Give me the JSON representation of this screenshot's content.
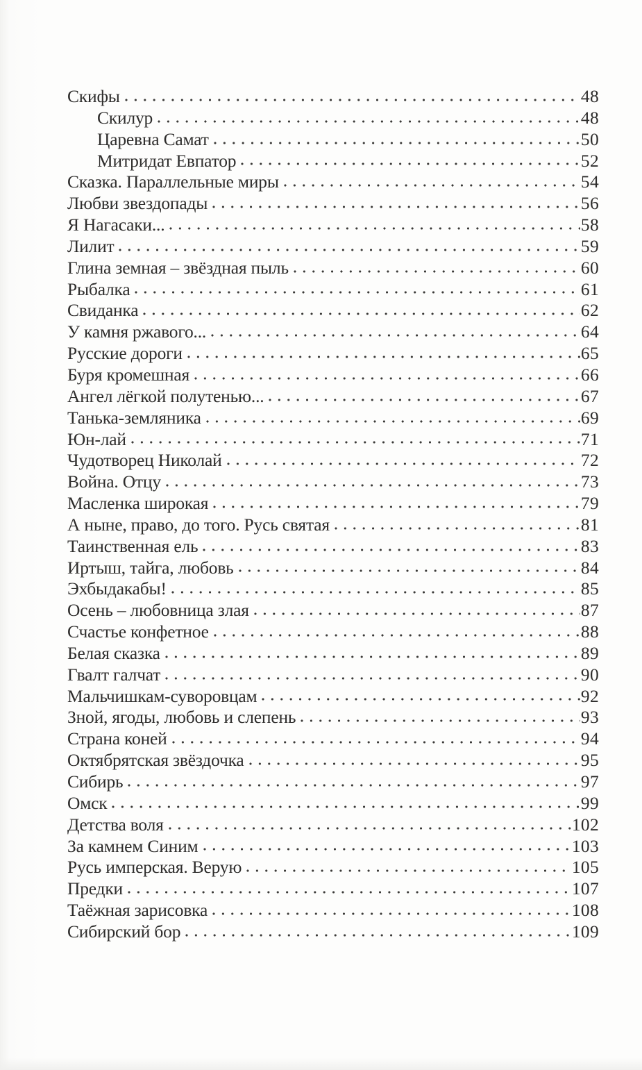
{
  "page": {
    "kind": "scanned-book-table-of-contents",
    "language": "ru",
    "background_color": "#fdfdfc",
    "text_color": "#2e2d2c"
  },
  "toc": {
    "entries": [
      {
        "title": "Скифы",
        "page": "48",
        "indent": 0
      },
      {
        "title": "Скилур",
        "page": "48",
        "indent": 1
      },
      {
        "title": "Царевна Самат",
        "page": "50",
        "indent": 1
      },
      {
        "title": "Митридат Евпатор",
        "page": "52",
        "indent": 1
      },
      {
        "title": "Сказка. Параллельные миры",
        "page": "54",
        "indent": 0
      },
      {
        "title": "Любви звездопады",
        "page": "56",
        "indent": 0
      },
      {
        "title": "Я Нагасаки...",
        "page": "58",
        "indent": 0
      },
      {
        "title": "Лилит",
        "page": "59",
        "indent": 0
      },
      {
        "title": "Глина земная – звёздная пыль",
        "page": "60",
        "indent": 0
      },
      {
        "title": "Рыбалка",
        "page": "61",
        "indent": 0
      },
      {
        "title": "Свиданка",
        "page": "62",
        "indent": 0
      },
      {
        "title": "У камня ржавого...",
        "page": "64",
        "indent": 0
      },
      {
        "title": "Русские дороги",
        "page": "65",
        "indent": 0
      },
      {
        "title": "Буря кромешная",
        "page": "66",
        "indent": 0
      },
      {
        "title": "Ангел лёгкой полутенью...",
        "page": "67",
        "indent": 0
      },
      {
        "title": "Танька-земляника",
        "page": "69",
        "indent": 0
      },
      {
        "title": "Юн-лай",
        "page": "71",
        "indent": 0
      },
      {
        "title": "Чудотворец Николай",
        "page": "72",
        "indent": 0
      },
      {
        "title": "Война. Отцу",
        "page": "73",
        "indent": 0
      },
      {
        "title": "Масленка широкая",
        "page": "79",
        "indent": 0
      },
      {
        "title": "А ныне, право, до того. Русь святая",
        "page": "81",
        "indent": 0
      },
      {
        "title": "Таинственная ель",
        "page": "83",
        "indent": 0
      },
      {
        "title": "Иртыш, тайга, любовь",
        "page": "84",
        "indent": 0
      },
      {
        "title": "Эхбыдакабы!",
        "page": "85",
        "indent": 0
      },
      {
        "title": "Осень – любовница злая",
        "page": "87",
        "indent": 0
      },
      {
        "title": "Счастье конфетное",
        "page": "88",
        "indent": 0
      },
      {
        "title": "Белая сказка",
        "page": "89",
        "indent": 0
      },
      {
        "title": "Гвалт галчат",
        "page": "90",
        "indent": 0
      },
      {
        "title": "Мальчишкам-суворовцам",
        "page": "92",
        "indent": 0
      },
      {
        "title": "Зной, ягоды, любовь и слепень",
        "page": "93",
        "indent": 0
      },
      {
        "title": "Страна коней",
        "page": "94",
        "indent": 0
      },
      {
        "title": "Октябрятская звёздочка",
        "page": "95",
        "indent": 0
      },
      {
        "title": "Сибирь",
        "page": "97",
        "indent": 0
      },
      {
        "title": "Омск",
        "page": "99",
        "indent": 0
      },
      {
        "title": "Детства воля",
        "page": "102",
        "indent": 0
      },
      {
        "title": "За камнем Синим",
        "page": "103",
        "indent": 0
      },
      {
        "title": "Русь имперская. Верую",
        "page": "105",
        "indent": 0
      },
      {
        "title": "Предки",
        "page": "107",
        "indent": 0
      },
      {
        "title": "Таёжная зарисовка",
        "page": "108",
        "indent": 0
      },
      {
        "title": "Сибирский бор",
        "page": "109",
        "indent": 0
      }
    ]
  }
}
